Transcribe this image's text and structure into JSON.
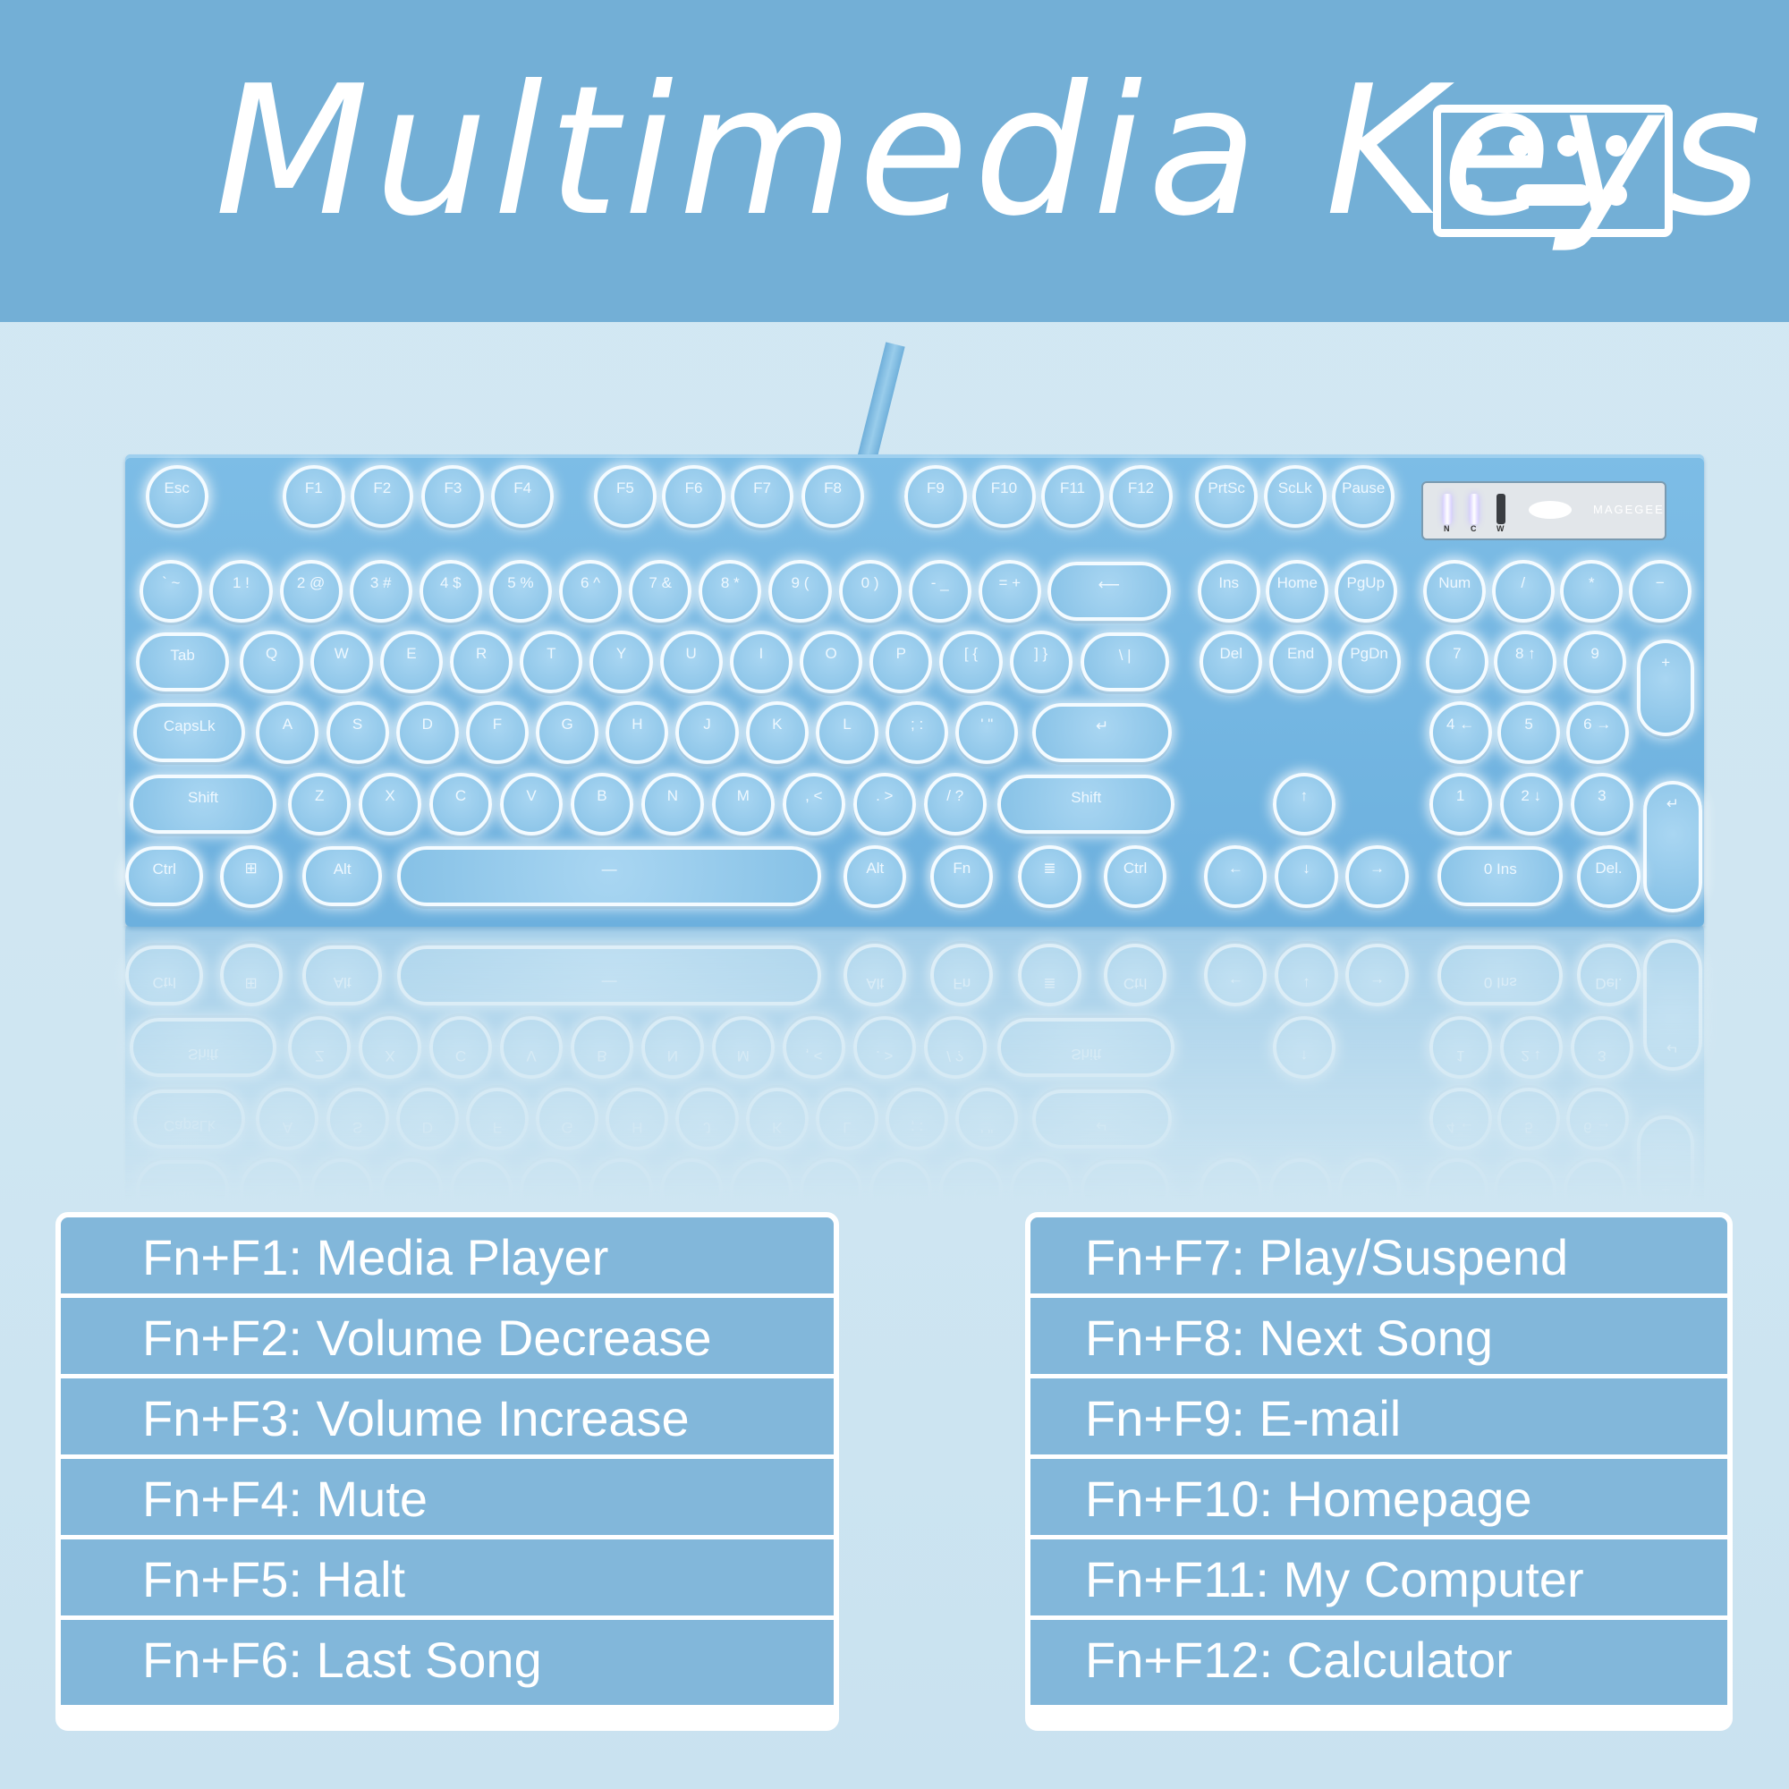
{
  "header": {
    "title": "Multimedia Keys",
    "icon": "keyboard-icon",
    "color": "#73afd6"
  },
  "keyboard": {
    "brand": "MAGEGEE",
    "indicators": [
      "N",
      "C",
      "W"
    ],
    "indicator_states": [
      true,
      true,
      false
    ],
    "rows": [
      [
        "Esc",
        "F1",
        "F2",
        "F3",
        "F4",
        "F5",
        "F6",
        "F7",
        "F8",
        "F9",
        "F10",
        "F11",
        "F12",
        "PrtSc",
        "ScLk",
        "Pause"
      ],
      [
        "` ~",
        "1 !",
        "2 @",
        "3 #",
        "4 $",
        "5 %",
        "6 ^",
        "7 &",
        "8 *",
        "9 (",
        "0 )",
        "- _",
        "= +",
        "⟵",
        "Ins",
        "Home",
        "PgUp",
        "Num",
        "/",
        "*",
        "−"
      ],
      [
        "Tab",
        "Q",
        "W",
        "E",
        "R",
        "T",
        "Y",
        "U",
        "I",
        "O",
        "P",
        "[ {",
        "] }",
        "\\ |",
        "Del",
        "End",
        "PgDn",
        "7",
        "8 ↑",
        "9",
        "+"
      ],
      [
        "CapsLk",
        "A",
        "S",
        "D",
        "F",
        "G",
        "H",
        "J",
        "K",
        "L",
        "; :",
        "' \"",
        "↵",
        "4 ←",
        "5",
        "6 →"
      ],
      [
        "Shift",
        "Z",
        "X",
        "C",
        "V",
        "B",
        "N",
        "M",
        ", <",
        ". >",
        "/ ?",
        "Shift",
        "↑",
        "1",
        "2 ↓",
        "3",
        "↵"
      ],
      [
        "Ctrl",
        "⊞",
        "Alt",
        "—",
        "Alt",
        "Fn",
        "≣",
        "Ctrl",
        "←",
        "↓",
        "→",
        "0 Ins",
        "Del."
      ]
    ]
  },
  "left_list": [
    "Fn+F1: Media Player",
    "Fn+F2: Volume Decrease",
    "Fn+F3: Volume Increase",
    "Fn+F4: Mute",
    "Fn+F5: Halt",
    "Fn+F6: Last Song"
  ],
  "right_list": [
    "Fn+F7: Play/Suspend",
    "Fn+F8: Next Song",
    "Fn+F9: E-mail",
    "Fn+F10: Homepage",
    "Fn+F11: My Computer",
    "Fn+F12: Calculator"
  ]
}
